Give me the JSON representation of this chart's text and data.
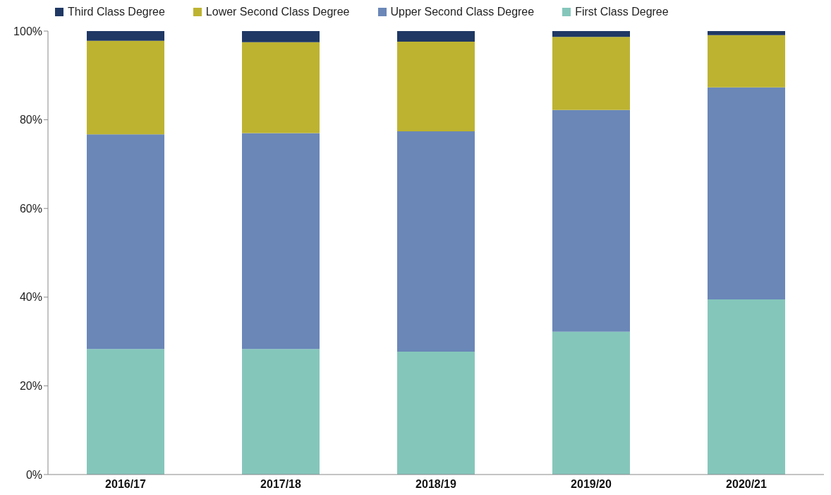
{
  "chart_data": {
    "type": "bar",
    "stacked": true,
    "categories": [
      "2016/17",
      "2017/18",
      "2018/19",
      "2019/20",
      "2020/21"
    ],
    "series": [
      {
        "name": "First Class Degree",
        "color": "#85c6bb",
        "values": [
          28.3,
          28.3,
          27.7,
          32.2,
          39.5
        ]
      },
      {
        "name": "Upper Second Class Degree",
        "color": "#6a87b8",
        "values": [
          48.4,
          48.7,
          49.7,
          50.0,
          47.8
        ]
      },
      {
        "name": "Lower Second Class Degree",
        "color": "#bdb331",
        "values": [
          21.1,
          20.5,
          20.2,
          16.5,
          11.8
        ]
      },
      {
        "name": "Third Class Degree",
        "color": "#1f3864",
        "values": [
          2.2,
          2.5,
          2.4,
          1.3,
          0.9
        ]
      }
    ],
    "ylim": [
      0,
      100
    ],
    "yticks": [
      {
        "value": 0,
        "label": "0%"
      },
      {
        "value": 20,
        "label": "20%"
      },
      {
        "value": 40,
        "label": "40%"
      },
      {
        "value": 60,
        "label": "60%"
      },
      {
        "value": 80,
        "label": "80%"
      },
      {
        "value": 100,
        "label": "100%"
      }
    ],
    "legend": "top left"
  }
}
